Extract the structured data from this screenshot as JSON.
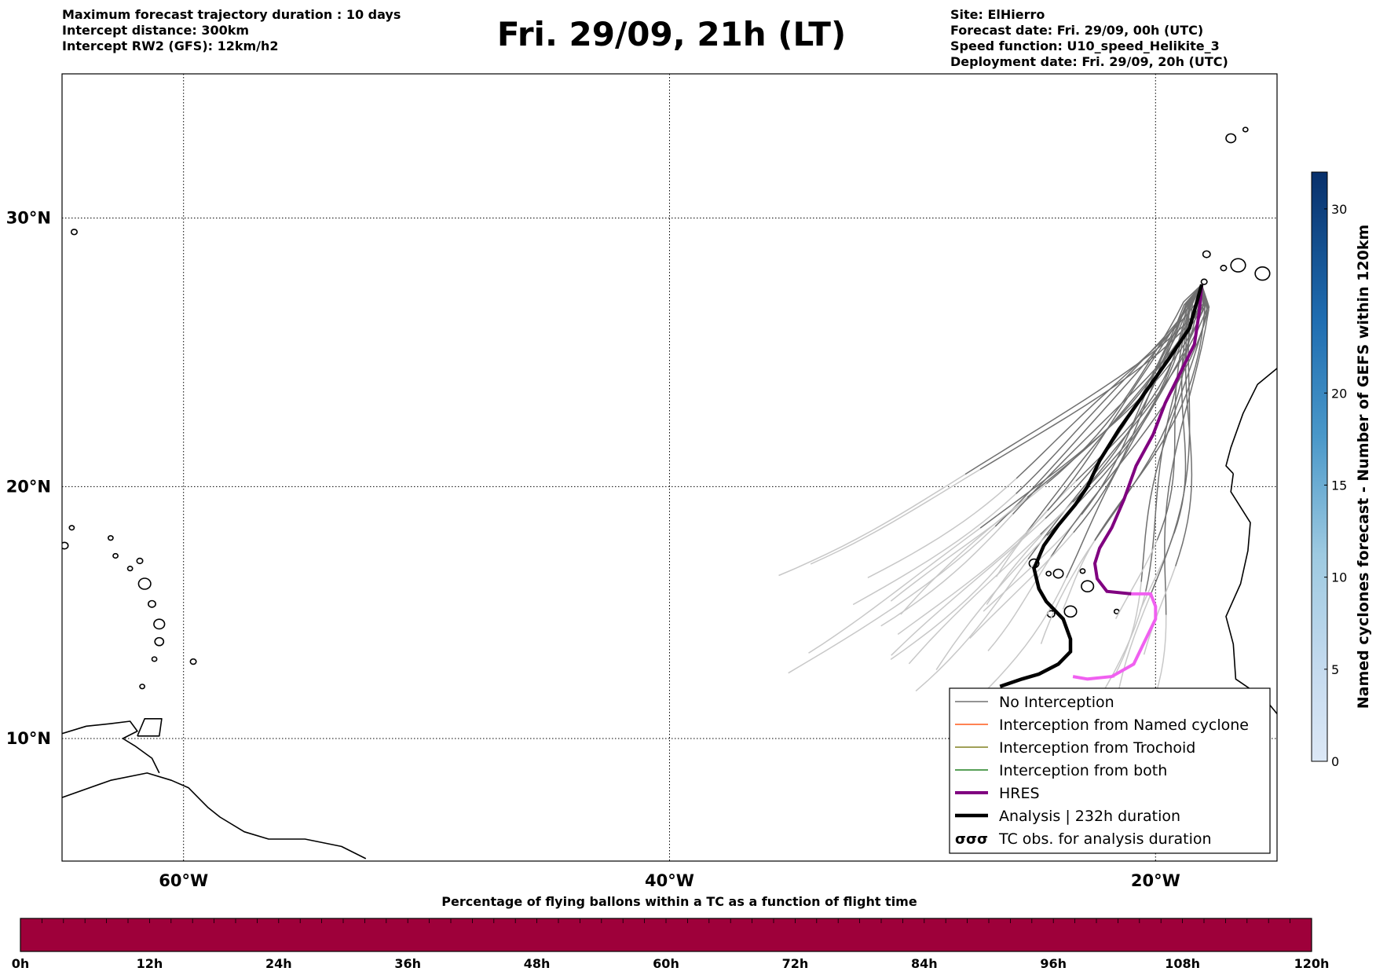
{
  "header": {
    "left": [
      "Maximum forecast trajectory duration : 10 days",
      "Intercept distance: 300km",
      "Intercept RW2 (GFS):  12km/h2"
    ],
    "title": "Fri. 29/09, 21h (LT)",
    "right": [
      "Site: ElHierro",
      "Forecast date: Fri. 29/09, 00h (UTC)",
      "Speed function: U10_speed_Helikite_3",
      "Deployment date: Fri. 29/09, 20h (UTC)"
    ]
  },
  "map": {
    "lat_range": [
      5,
      35
    ],
    "lon_range": [
      -65,
      -15
    ],
    "lat_ticks": [
      {
        "value": 30,
        "label": "30°N"
      },
      {
        "value": 20,
        "label": "20°N"
      },
      {
        "value": 10,
        "label": "10°N"
      }
    ],
    "lon_ticks": [
      {
        "value": -60,
        "label": "60°W"
      },
      {
        "value": -40,
        "label": "40°W"
      },
      {
        "value": -20,
        "label": "20°W"
      }
    ],
    "grid": "dotted",
    "site": {
      "name": "ElHierro",
      "lon": -18.1,
      "lat": 27.6
    }
  },
  "chart_data": {
    "type": "line",
    "title": "Fri. 29/09, 21h (LT)",
    "x_axis": "longitude",
    "y_axis": "latitude",
    "colors": {
      "no_interception": "#707070",
      "no_interception_late": "#c8c8c8",
      "named_cyclone": "#ff5a1a",
      "trochoid": "#808020",
      "both": "#208020",
      "hres": "#800080",
      "hres_late": "#f060f0",
      "analysis": "#000000"
    },
    "series": [
      {
        "name": "Analysis | 232h duration",
        "points": [
          [
            -18.1,
            27.6
          ],
          [
            -18.6,
            26.0
          ],
          [
            -19.5,
            24.8
          ],
          [
            -20.5,
            23.5
          ],
          [
            -21.5,
            22.2
          ],
          [
            -22.3,
            21.0
          ],
          [
            -22.8,
            20.0
          ],
          [
            -23.3,
            19.3
          ],
          [
            -24.0,
            18.5
          ],
          [
            -24.6,
            17.7
          ],
          [
            -25.0,
            16.8
          ],
          [
            -24.8,
            16.0
          ],
          [
            -24.5,
            15.5
          ],
          [
            -23.8,
            14.8
          ],
          [
            -23.5,
            14.0
          ],
          [
            -23.5,
            13.5
          ],
          [
            -24.0,
            13.0
          ],
          [
            -24.8,
            12.6
          ],
          [
            -25.5,
            12.4
          ],
          [
            -26.4,
            12.1
          ]
        ]
      },
      {
        "name": "HRES",
        "points": [
          [
            -18.1,
            27.6
          ],
          [
            -18.2,
            26.6
          ],
          [
            -18.4,
            25.4
          ],
          [
            -19.0,
            24.3
          ],
          [
            -19.6,
            23.2
          ],
          [
            -20.1,
            22.0
          ],
          [
            -20.8,
            20.8
          ],
          [
            -21.3,
            19.5
          ],
          [
            -21.8,
            18.4
          ],
          [
            -22.3,
            17.6
          ],
          [
            -22.5,
            17.0
          ],
          [
            -22.4,
            16.4
          ],
          [
            -22.0,
            15.9
          ],
          [
            -21.0,
            15.8
          ],
          [
            -20.2,
            15.8
          ],
          [
            -20.0,
            15.3
          ],
          [
            -20.0,
            14.8
          ],
          [
            -20.5,
            13.8
          ],
          [
            -20.9,
            13.0
          ],
          [
            -21.8,
            12.5
          ],
          [
            -22.8,
            12.4
          ],
          [
            -23.4,
            12.5
          ]
        ]
      },
      {
        "name": "No Interception",
        "members": 30
      }
    ],
    "legend_placement": "lower-right",
    "legend": [
      "No Interception",
      "Interception from Named cyclone",
      "Interception from Trochoid",
      "Interception from both",
      "HRES",
      "Analysis | 232h duration",
      "TC obs. for analysis duration"
    ],
    "legend_symbol_tc": "σσσ",
    "colorbar_right": {
      "label": "Named cyclones forecast - Number of GEFS within 120km",
      "range": [
        0,
        32
      ],
      "ticks": [
        0,
        5,
        10,
        15,
        20,
        30
      ],
      "color_light": "#dce8f6",
      "color_dark": "#08306b"
    },
    "colorbar_bottom": {
      "title": "Percentage of flying ballons within a TC as a function of flight time",
      "ticks": [
        "0h",
        "12h",
        "24h",
        "36h",
        "48h",
        "60h",
        "72h",
        "84h",
        "96h",
        "108h",
        "120h"
      ],
      "fill_color": "#9e003a",
      "value": 0
    }
  }
}
